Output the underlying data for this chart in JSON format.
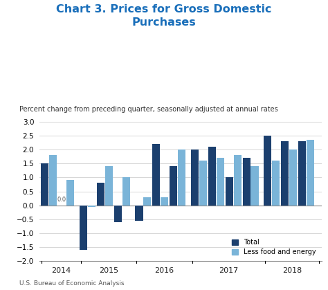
{
  "title": "Chart 3. Prices for Gross Domestic\nPurchases",
  "subtitle": "Percent change from preceding quarter, seasonally adjusted at annual rates",
  "footer": "U.S. Bureau of Economic Analysis",
  "title_color": "#1a6fba",
  "total_color": "#1b3f6e",
  "less_color": "#7ab4d8",
  "background_color": "#ffffff",
  "ylim": [
    -2.0,
    3.0
  ],
  "yticks": [
    -2.0,
    -1.5,
    -1.0,
    -0.5,
    0.0,
    0.5,
    1.0,
    1.5,
    2.0,
    2.5,
    3.0
  ],
  "year_groups": [
    2,
    3,
    3,
    4,
    3
  ],
  "year_labels": [
    "2014",
    "2015",
    "2016",
    "2017",
    "2018"
  ],
  "total_vals": [
    1.5,
    0.0,
    -1.6,
    0.8,
    -0.6,
    -0.55,
    2.2,
    1.4,
    2.0,
    2.1,
    1.0,
    1.7,
    2.5,
    2.3,
    2.3
  ],
  "less_vals": [
    1.8,
    0.9,
    -0.05,
    1.4,
    1.0,
    0.3,
    0.3,
    2.0,
    1.6,
    1.7,
    1.8,
    1.4,
    1.6,
    2.0,
    2.35
  ]
}
